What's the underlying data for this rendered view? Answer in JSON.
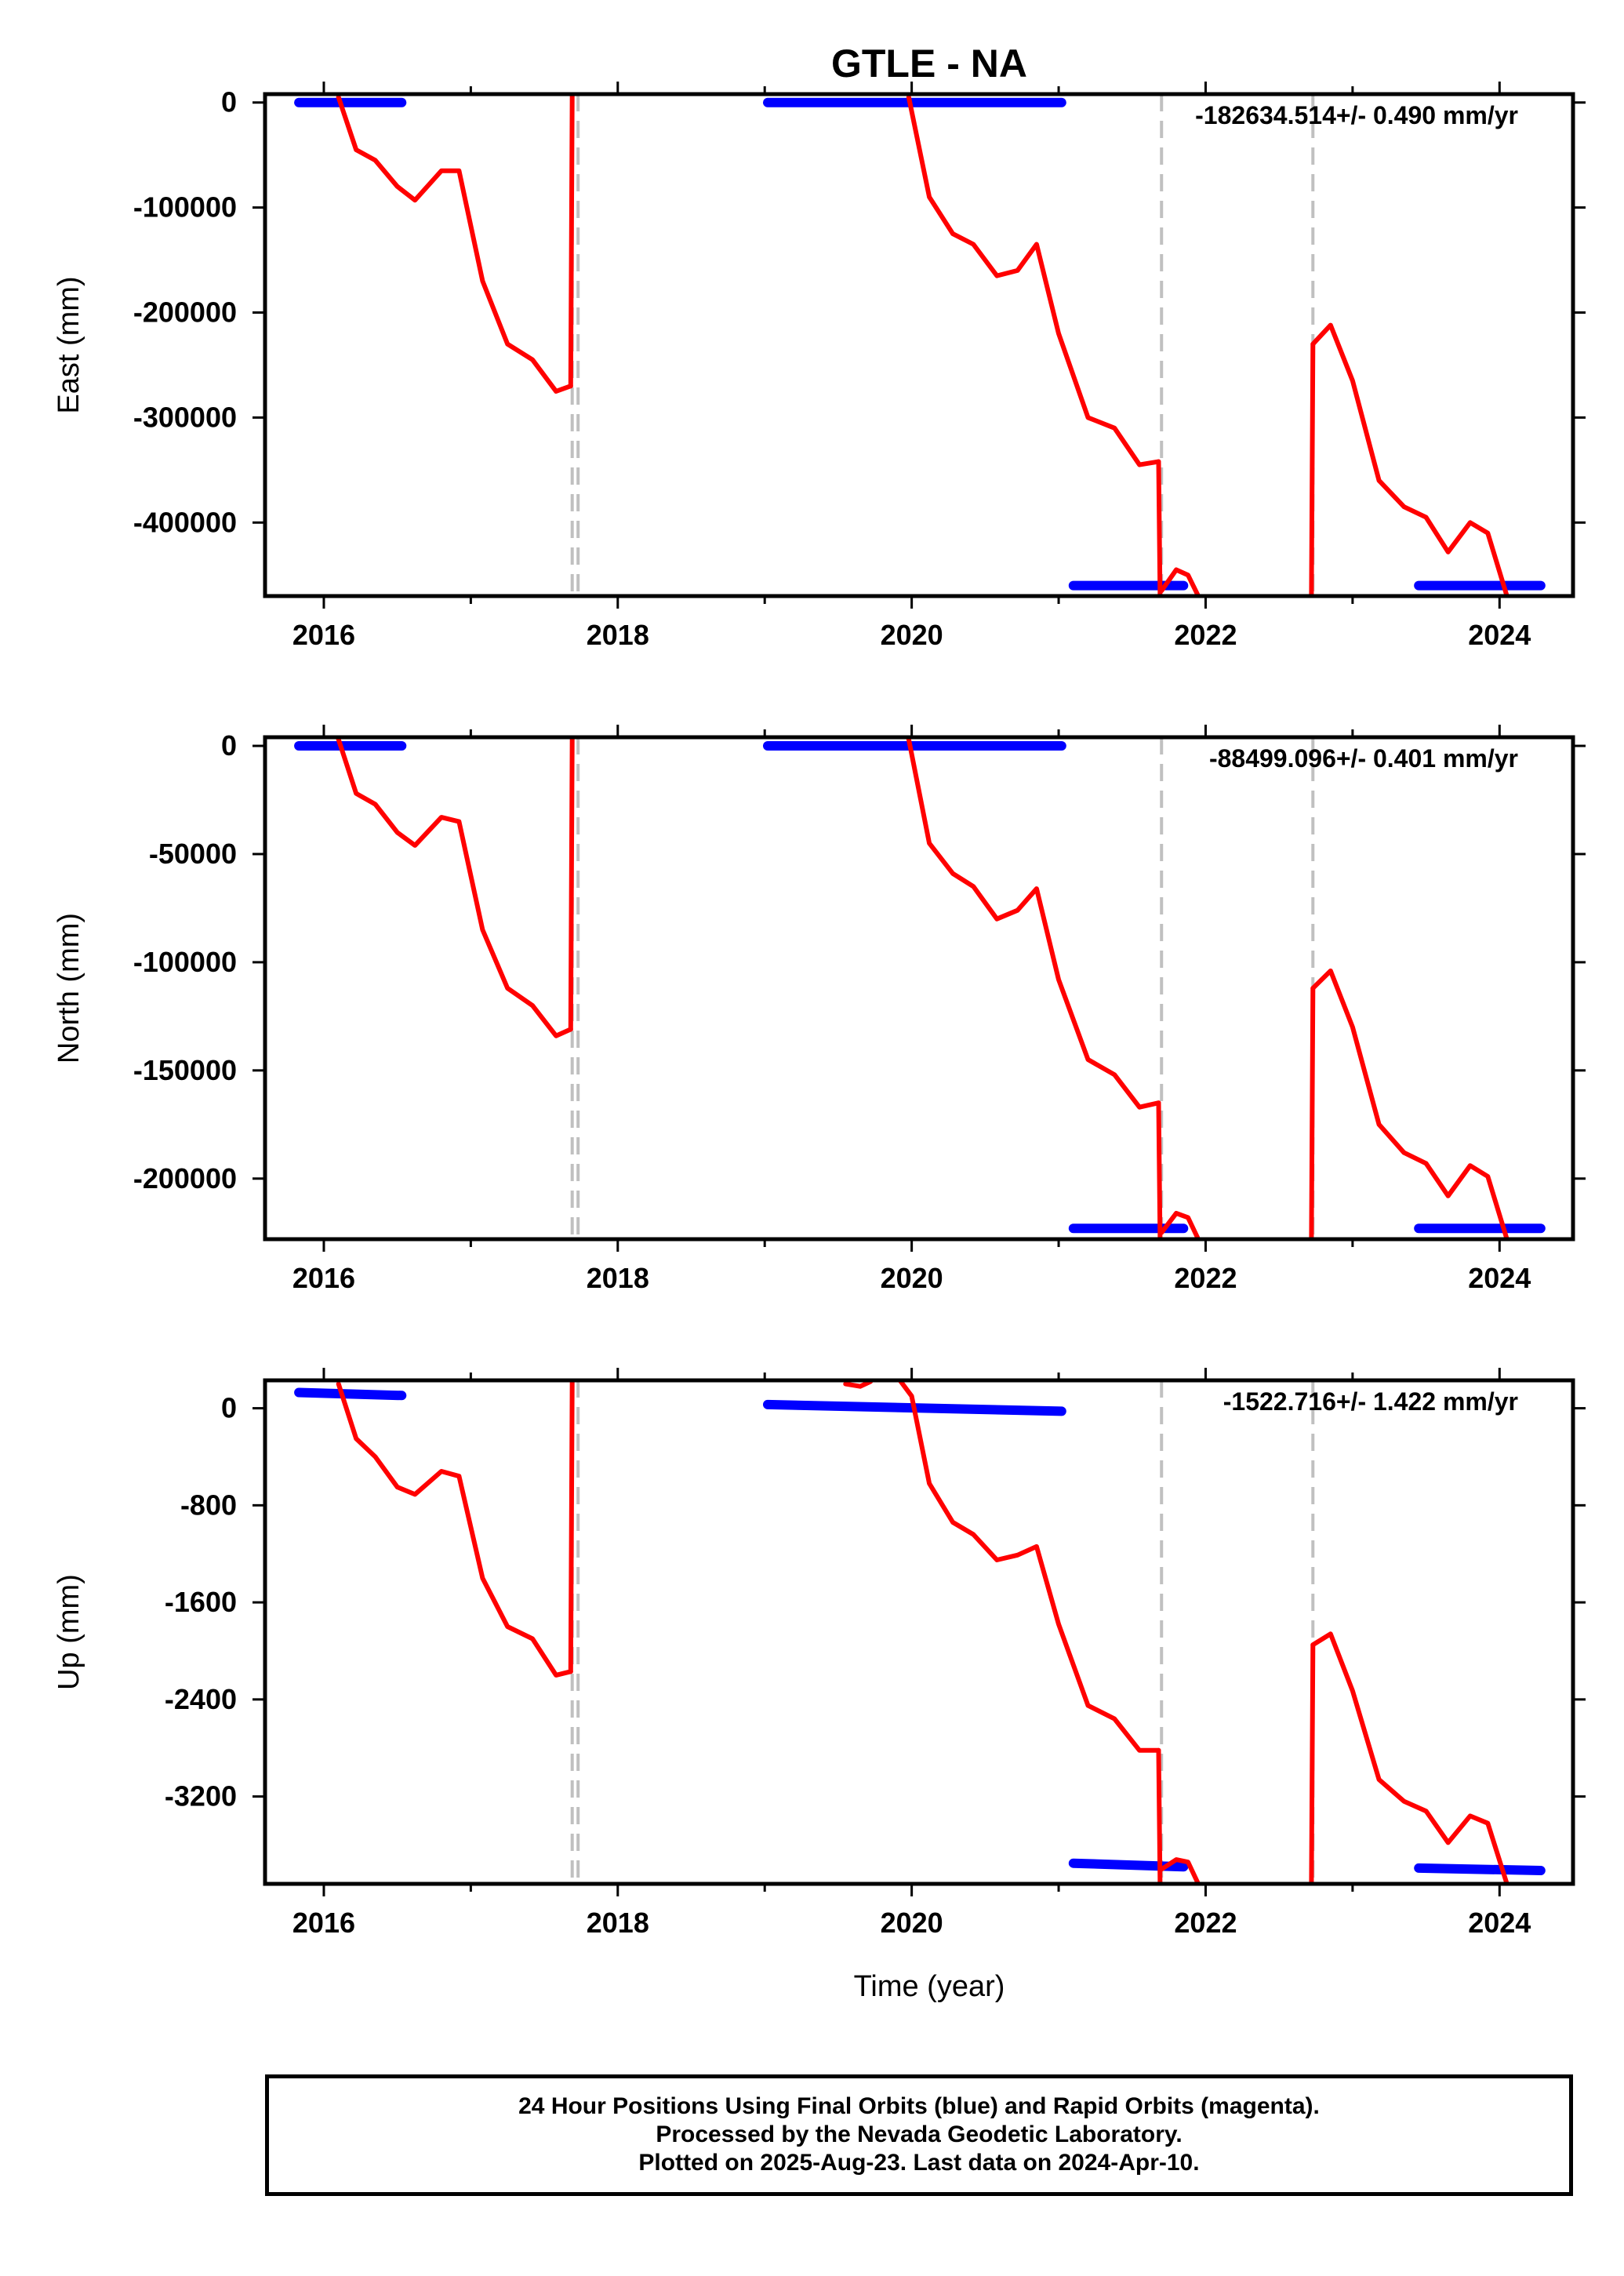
{
  "title": "GTLE - NA",
  "xlabel": "Time (year)",
  "x_ticks": [
    "2016",
    "2018",
    "2020",
    "2022",
    "2024"
  ],
  "colors": {
    "final_orbits": "#0000ff",
    "model": "#ff0000",
    "offset_line": "#c0c0c0"
  },
  "chart_data": [
    {
      "type": "line",
      "ylabel": "East (mm)",
      "rate_label": "-182634.514+/- 0.490 mm/yr",
      "yticks": [
        "0",
        "-100000",
        "-200000",
        "-300000",
        "-400000"
      ],
      "ytick_values": [
        0,
        -100000,
        -200000,
        -300000,
        -400000
      ],
      "ylim": [
        -470000,
        8000
      ],
      "xlim": [
        2015.6,
        2024.5
      ],
      "offset_epochs": [
        2017.69,
        2017.73,
        2021.7,
        2022.73
      ],
      "series": [
        {
          "kind": "final",
          "segments": [
            {
              "x": [
                2015.83,
                2016.53
              ],
              "y": [
                0,
                0
              ]
            },
            {
              "x": [
                2019.02,
                2021.02
              ],
              "y": [
                0,
                0
              ]
            },
            {
              "x": [
                2021.1,
                2021.85
              ],
              "y": [
                -460000,
                -460000
              ]
            },
            {
              "x": [
                2023.45,
                2024.28
              ],
              "y": [
                -460000,
                -460000
              ]
            }
          ]
        },
        {
          "kind": "model",
          "segments": [
            {
              "x": [
                2016.1,
                2016.22,
                2016.35,
                2016.5,
                2016.62,
                2016.8,
                2016.92,
                2017.08,
                2017.25,
                2017.42,
                2017.58,
                2017.68
              ],
              "y": [
                5000,
                -45000,
                -55000,
                -80000,
                -93000,
                -65000,
                -65000,
                -170000,
                -230000,
                -245000,
                -275000,
                -270000
              ]
            },
            {
              "x": [
                2017.68,
                2017.69
              ],
              "y": [
                -270000,
                8000
              ]
            },
            {
              "x": [
                2019.98,
                2020.12,
                2020.28,
                2020.42,
                2020.58,
                2020.72,
                2020.85,
                2021.0,
                2021.2,
                2021.38,
                2021.55,
                2021.68
              ],
              "y": [
                5000,
                -90000,
                -125000,
                -135000,
                -165000,
                -160000,
                -135000,
                -220000,
                -300000,
                -310000,
                -345000,
                -342000
              ]
            },
            {
              "x": [
                2021.68,
                2021.69
              ],
              "y": [
                -342000,
                -470000
              ]
            },
            {
              "x": [
                2021.7,
                2021.8,
                2021.88,
                2021.95
              ],
              "y": [
                -465000,
                -445000,
                -450000,
                -470000
              ]
            },
            {
              "x": [
                2022.72,
                2022.73
              ],
              "y": [
                -470000,
                -230000
              ]
            },
            {
              "x": [
                2022.73,
                2022.85,
                2023.0,
                2023.18,
                2023.35,
                2023.5,
                2023.65,
                2023.8,
                2023.92,
                2024.05
              ],
              "y": [
                -230000,
                -212000,
                -265000,
                -360000,
                -385000,
                -395000,
                -428000,
                -400000,
                -410000,
                -470000
              ]
            }
          ]
        }
      ]
    },
    {
      "type": "line",
      "ylabel": "North (mm)",
      "rate_label": "-88499.096+/- 0.401 mm/yr",
      "yticks": [
        "0",
        "-50000",
        "-100000",
        "-150000",
        "-200000"
      ],
      "ytick_values": [
        0,
        -50000,
        -100000,
        -150000,
        -200000
      ],
      "ylim": [
        -228000,
        4000
      ],
      "xlim": [
        2015.6,
        2024.5
      ],
      "offset_epochs": [
        2017.69,
        2017.73,
        2021.7,
        2022.73
      ],
      "series": [
        {
          "kind": "final",
          "segments": [
            {
              "x": [
                2015.83,
                2016.53
              ],
              "y": [
                0,
                0
              ]
            },
            {
              "x": [
                2019.02,
                2021.02
              ],
              "y": [
                0,
                0
              ]
            },
            {
              "x": [
                2021.1,
                2021.85
              ],
              "y": [
                -223000,
                -223000
              ]
            },
            {
              "x": [
                2023.45,
                2024.28
              ],
              "y": [
                -223000,
                -223000
              ]
            }
          ]
        },
        {
          "kind": "model",
          "segments": [
            {
              "x": [
                2016.1,
                2016.22,
                2016.35,
                2016.5,
                2016.62,
                2016.8,
                2016.92,
                2017.08,
                2017.25,
                2017.42,
                2017.58,
                2017.68
              ],
              "y": [
                3000,
                -22000,
                -27000,
                -40000,
                -46000,
                -33000,
                -35000,
                -85000,
                -112000,
                -120000,
                -134000,
                -131000
              ]
            },
            {
              "x": [
                2017.68,
                2017.69
              ],
              "y": [
                -131000,
                4000
              ]
            },
            {
              "x": [
                2019.98,
                2020.12,
                2020.28,
                2020.42,
                2020.58,
                2020.72,
                2020.85,
                2021.0,
                2021.2,
                2021.38,
                2021.55,
                2021.68
              ],
              "y": [
                3000,
                -45000,
                -59000,
                -65000,
                -80000,
                -76000,
                -66000,
                -108000,
                -145000,
                -152000,
                -167000,
                -165000
              ]
            },
            {
              "x": [
                2021.68,
                2021.69
              ],
              "y": [
                -165000,
                -228000
              ]
            },
            {
              "x": [
                2021.7,
                2021.8,
                2021.88,
                2021.95
              ],
              "y": [
                -225000,
                -216000,
                -218000,
                -228000
              ]
            },
            {
              "x": [
                2022.72,
                2022.73
              ],
              "y": [
                -228000,
                -112000
              ]
            },
            {
              "x": [
                2022.73,
                2022.85,
                2023.0,
                2023.18,
                2023.35,
                2023.5,
                2023.65,
                2023.8,
                2023.92,
                2024.05
              ],
              "y": [
                -112000,
                -104000,
                -130000,
                -175000,
                -188000,
                -193000,
                -208000,
                -194000,
                -199000,
                -228000
              ]
            }
          ]
        }
      ]
    },
    {
      "type": "line",
      "ylabel": "Up (mm)",
      "rate_label": "-1522.716+/- 1.422 mm/yr",
      "yticks": [
        "0",
        "-800",
        "-1600",
        "-2400",
        "-3200"
      ],
      "ytick_values": [
        0,
        -800,
        -1600,
        -2400,
        -3200
      ],
      "ylim": [
        -3920,
        230
      ],
      "xlim": [
        2015.6,
        2024.5
      ],
      "offset_epochs": [
        2017.69,
        2017.73,
        2021.7,
        2022.73
      ],
      "series": [
        {
          "kind": "final",
          "segments": [
            {
              "x": [
                2015.83,
                2016.53
              ],
              "y": [
                130,
                105
              ]
            },
            {
              "x": [
                2019.02,
                2021.02
              ],
              "y": [
                30,
                -25
              ]
            },
            {
              "x": [
                2021.1,
                2021.85
              ],
              "y": [
                -3750,
                -3780
              ]
            },
            {
              "x": [
                2023.45,
                2024.28
              ],
              "y": [
                -3790,
                -3810
              ]
            }
          ]
        },
        {
          "kind": "model",
          "segments": [
            {
              "x": [
                2016.1,
                2016.22,
                2016.35,
                2016.5,
                2016.62,
                2016.8,
                2016.92,
                2017.08,
                2017.25,
                2017.42,
                2017.58,
                2017.68
              ],
              "y": [
                200,
                -250,
                -400,
                -650,
                -710,
                -520,
                -560,
                -1400,
                -1800,
                -1900,
                -2200,
                -2170
              ]
            },
            {
              "x": [
                2017.68,
                2017.69
              ],
              "y": [
                -2170,
                230
              ]
            },
            {
              "x": [
                2019.55,
                2019.65,
                2019.72
              ],
              "y": [
                200,
                180,
                220
              ]
            },
            {
              "x": [
                2019.92,
                2020.0,
                2020.12,
                2020.28,
                2020.42,
                2020.58,
                2020.72,
                2020.85,
                2021.0,
                2021.2,
                2021.38,
                2021.55,
                2021.68
              ],
              "y": [
                230,
                100,
                -620,
                -940,
                -1040,
                -1250,
                -1210,
                -1140,
                -1780,
                -2450,
                -2560,
                -2820,
                -2820
              ]
            },
            {
              "x": [
                2021.68,
                2021.69
              ],
              "y": [
                -2820,
                -3920
              ]
            },
            {
              "x": [
                2021.7,
                2021.8,
                2021.88,
                2021.95
              ],
              "y": [
                -3800,
                -3720,
                -3740,
                -3920
              ]
            },
            {
              "x": [
                2022.72,
                2022.73
              ],
              "y": [
                -3920,
                -1950
              ]
            },
            {
              "x": [
                2022.73,
                2022.85,
                2023.0,
                2023.18,
                2023.35,
                2023.5,
                2023.65,
                2023.8,
                2023.92,
                2024.05
              ],
              "y": [
                -1950,
                -1860,
                -2330,
                -3060,
                -3240,
                -3320,
                -3580,
                -3360,
                -3420,
                -3920
              ]
            }
          ]
        }
      ]
    }
  ],
  "caption": {
    "line1": "24 Hour Positions Using Final Orbits (blue) and Rapid Orbits (magenta).",
    "line2": "Processed by the Nevada Geodetic Laboratory.",
    "line3": "Plotted on 2025-Aug-23. Last data on 2024-Apr-10."
  }
}
